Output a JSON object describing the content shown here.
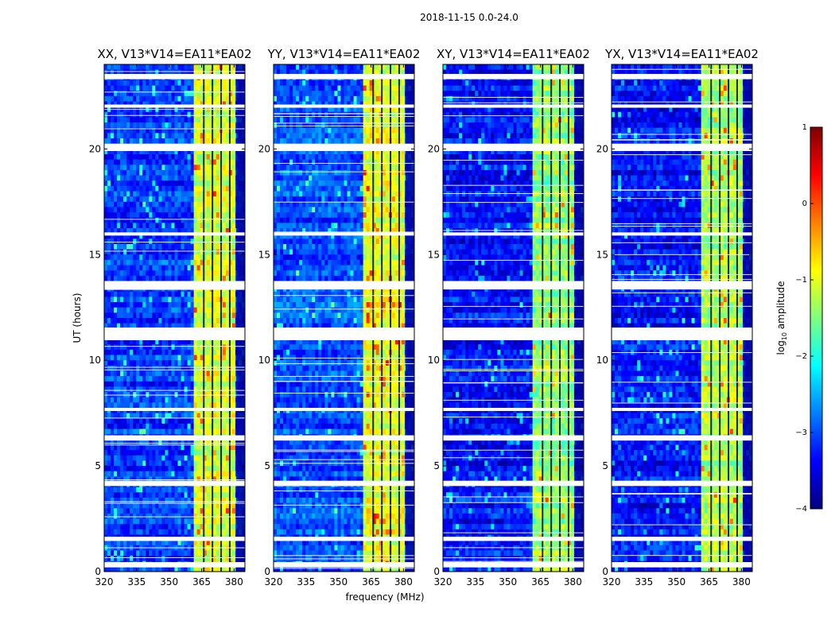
{
  "figure": {
    "title": "2018-11-15 0.0-24.0",
    "xlabel": "frequency (MHz)",
    "ylabel": "UT (hours)"
  },
  "colorbar": {
    "label_prefix": "log",
    "label_sub": "10",
    "label_suffix": " amplitude",
    "min": -4,
    "max": 1,
    "ticks": [
      1,
      0,
      -1,
      -2,
      -3,
      -4
    ],
    "tick_labels": [
      "1",
      "0",
      "−1",
      "−2",
      "−3",
      "−4"
    ],
    "colormap": "jet",
    "colormap_stops": [
      "#00007f",
      "#0000ff",
      "#007fff",
      "#00ffff",
      "#7fff7f",
      "#ffff00",
      "#ff7f00",
      "#ff0000",
      "#7f0000"
    ]
  },
  "chart_data": [
    {
      "type": "heatmap",
      "title": "XX, V13*V14=EA11*EA02",
      "xlabel": "",
      "ylabel": "UT (hours)",
      "xlim": [
        320,
        385
      ],
      "ylim": [
        0,
        24
      ],
      "xticks": [
        320,
        335,
        350,
        365,
        380
      ],
      "yticks": [
        0,
        5,
        10,
        15,
        20
      ],
      "bright_band_mhz": [
        361,
        381
      ],
      "band_level": -1.1,
      "background_level": -3.1
    },
    {
      "type": "heatmap",
      "title": "YY, V13*V14=EA11*EA02",
      "xlabel": "frequency (MHz)",
      "ylabel": "",
      "xlim": [
        320,
        385
      ],
      "ylim": [
        0,
        24
      ],
      "xticks": [
        320,
        335,
        350,
        365,
        380
      ],
      "yticks": [
        0,
        5,
        10,
        15,
        20
      ],
      "bright_band_mhz": [
        361,
        381
      ],
      "band_level": -1.0,
      "background_level": -3.0
    },
    {
      "type": "heatmap",
      "title": "XY, V13*V14=EA11*EA02",
      "xlabel": "",
      "ylabel": "",
      "xlim": [
        320,
        385
      ],
      "ylim": [
        0,
        24
      ],
      "xticks": [
        320,
        335,
        350,
        365,
        380
      ],
      "yticks": [
        0,
        5,
        10,
        15,
        20
      ],
      "bright_band_mhz": [
        361,
        381
      ],
      "band_level": -1.4,
      "background_level": -3.3
    },
    {
      "type": "heatmap",
      "title": "YX, V13*V14=EA11*EA02",
      "xlabel": "",
      "ylabel": "",
      "xlim": [
        320,
        385
      ],
      "ylim": [
        0,
        24
      ],
      "xticks": [
        320,
        335,
        350,
        365,
        380
      ],
      "yticks": [
        0,
        5,
        10,
        15,
        20
      ],
      "bright_band_mhz": [
        361,
        381
      ],
      "band_level": -1.3,
      "background_level": -3.3
    }
  ],
  "flagged_ut_bands": [
    [
      0.2,
      0.45
    ],
    [
      1.45,
      1.65
    ],
    [
      4.05,
      4.3
    ],
    [
      6.2,
      6.45
    ],
    [
      7.6,
      7.75
    ],
    [
      10.95,
      11.55
    ],
    [
      13.35,
      13.75
    ],
    [
      15.9,
      16.05
    ],
    [
      19.9,
      20.25
    ],
    [
      21.95,
      22.1
    ],
    [
      23.3,
      23.55
    ]
  ],
  "flagged_channels_mhz": [
    366,
    370,
    374,
    378
  ]
}
